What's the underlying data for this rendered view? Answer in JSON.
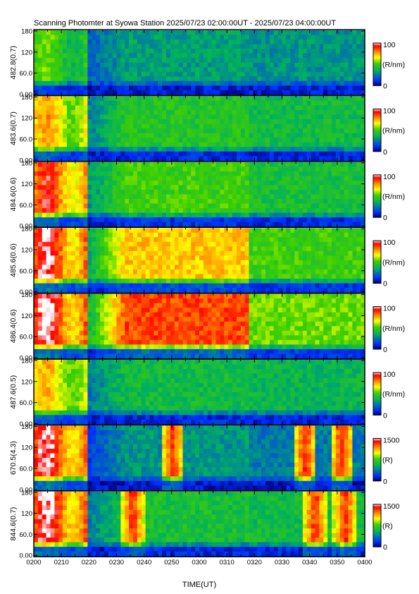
{
  "chart_data": {
    "type": "heatmap",
    "title": "Scanning Photomter at Syowa Station 2025/07/23 02:00:00UT - 2025/07/23 04:00:00UT",
    "xlabel": "TIME(UT)",
    "x_tick_labels": [
      "0200",
      "0210",
      "0220",
      "0230",
      "0240",
      "0250",
      "0300",
      "0310",
      "0320",
      "0330",
      "0340",
      "0350",
      "0400"
    ],
    "y_tick_labels": [
      "0.00",
      "60.0",
      "120",
      "180"
    ],
    "ylim": [
      0,
      180
    ],
    "xlim": [
      "0200",
      "0400"
    ],
    "colormap": [
      "#00007a",
      "#0030ff",
      "#00b060",
      "#40d000",
      "#ffff00",
      "#ff8000",
      "#ff0000",
      "#ffffff"
    ],
    "panels": [
      {
        "ylabel": "482.8(0.7)",
        "unit": "(R/nm)",
        "cmin": "0",
        "cmax": "100",
        "base": 0.32,
        "onset": 0.55,
        "mid": 0.32,
        "late": 0.3,
        "peaks": []
      },
      {
        "ylabel": "483.6(0.7)",
        "unit": "(R/nm)",
        "cmin": "0",
        "cmax": "100",
        "base": 0.42,
        "onset": 0.78,
        "mid": 0.45,
        "late": 0.4,
        "peaks": []
      },
      {
        "ylabel": "484.6(0.6)",
        "unit": "(R/nm)",
        "cmin": "0",
        "cmax": "100",
        "base": 0.48,
        "onset": 0.92,
        "mid": 0.5,
        "late": 0.42,
        "peaks": []
      },
      {
        "ylabel": "485.6(0.6)",
        "unit": "(R/nm)",
        "cmin": "0",
        "cmax": "100",
        "base": 0.55,
        "onset": 0.98,
        "mid": 0.72,
        "late": 0.5,
        "peaks": []
      },
      {
        "ylabel": "486.4(0.6)",
        "unit": "(R/nm)",
        "cmin": "0",
        "cmax": "100",
        "base": 0.62,
        "onset": 1.0,
        "mid": 0.86,
        "late": 0.55,
        "peaks": []
      },
      {
        "ylabel": "487.6(0.5)",
        "unit": "(R/nm)",
        "cmin": "0",
        "cmax": "100",
        "base": 0.4,
        "onset": 0.75,
        "mid": 0.4,
        "late": 0.38,
        "peaks": []
      },
      {
        "ylabel": "670.5(4.3)",
        "unit": "(R)",
        "cmin": "0",
        "cmax": "1500",
        "base": 0.22,
        "onset": 0.99,
        "mid": 0.3,
        "late": 0.25,
        "peaks": [
          0.42,
          0.82,
          0.93
        ]
      },
      {
        "ylabel": "844.6(0.7)",
        "unit": "(R)",
        "cmin": "0",
        "cmax": "1500",
        "base": 0.4,
        "onset": 0.99,
        "mid": 0.42,
        "late": 0.4,
        "peaks": [
          0.3,
          0.85,
          0.94
        ]
      }
    ]
  }
}
